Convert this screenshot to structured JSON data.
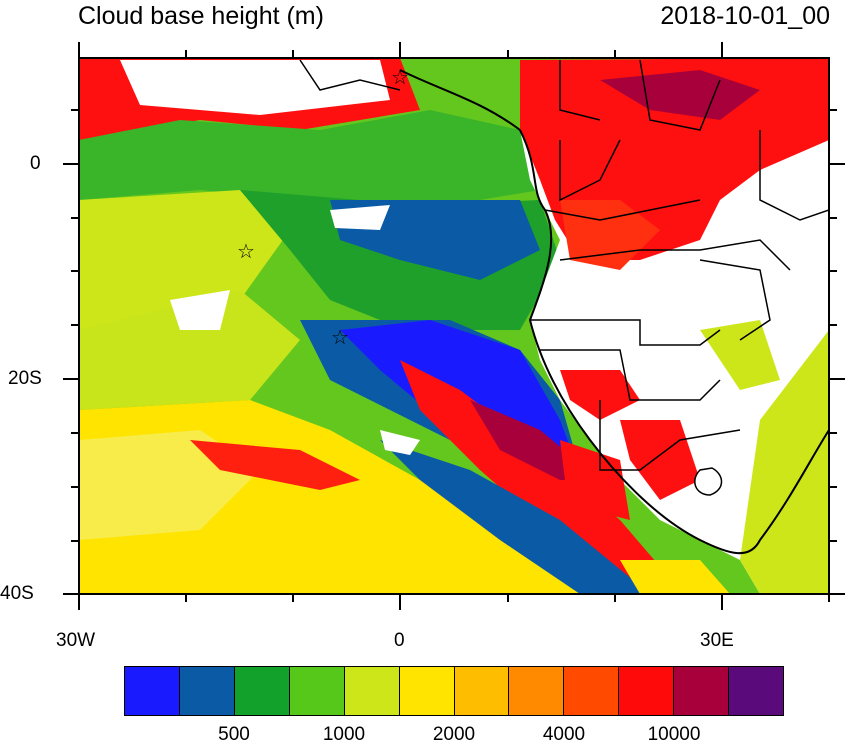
{
  "title_left": "Cloud base height (m)",
  "title_right": "2018-10-01_00",
  "lon_labels": [
    "30W",
    "0",
    "30E"
  ],
  "lat_labels": [
    "0",
    "20S",
    "40S"
  ],
  "colorbar": {
    "colors": [
      "#1a1aff",
      "#0b5aa6",
      "#12a12a",
      "#55c81a",
      "#cde61a",
      "#ffe400",
      "#ffbd00",
      "#ff8a00",
      "#ff4a00",
      "#ff0a0a",
      "#a8003a",
      "#5a0a7a"
    ],
    "labels": [
      "500",
      "1000",
      "2000",
      "4000",
      "10000"
    ]
  }
}
